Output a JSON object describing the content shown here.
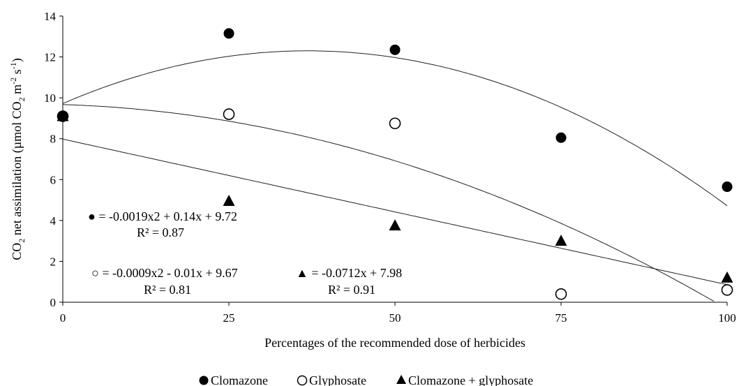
{
  "chart_data": {
    "type": "scatter",
    "title": "",
    "xlabel": "Percentages of the recommended dose of herbicides",
    "ylabel": {
      "t1": "CO",
      "t1_sub": "2",
      "t2": " net assimilation (µmol CO",
      "t2_sub": "2",
      "t3": " m",
      "t3_sup": "-2",
      "t4": " s",
      "t4_sup": "-1",
      "t5": ")"
    },
    "xlim": [
      0,
      100
    ],
    "ylim": [
      0,
      14
    ],
    "xticks": [
      0,
      25,
      50,
      75,
      100
    ],
    "yticks": [
      0,
      2,
      4,
      6,
      8,
      10,
      12,
      14
    ],
    "grid": false,
    "legend_position": "bottom",
    "series": [
      {
        "name": "Clomazone",
        "marker": "filled-circle",
        "x": [
          0,
          25,
          50,
          75,
          100
        ],
        "y": [
          9.1,
          13.15,
          12.35,
          8.05,
          5.65
        ],
        "fit": {
          "kind": "quadratic",
          "coeffs": [
            9.72,
            0.14,
            -0.0019
          ]
        },
        "equation": "● = -0.0019x2 + 0.14x + 9.72",
        "r2": "R² = 0.87"
      },
      {
        "name": "Glyphosate",
        "marker": "open-circle",
        "x": [
          0,
          25,
          50,
          75,
          100
        ],
        "y": [
          9.1,
          9.2,
          8.75,
          0.4,
          0.6
        ],
        "fit": {
          "kind": "quadratic",
          "coeffs": [
            9.67,
            -0.01,
            -0.0009
          ]
        },
        "equation": "○ = -0.0009x2 - 0.01x + 9.67",
        "r2": "R² = 0.81"
      },
      {
        "name": "Clomazone + glyphosate",
        "marker": "filled-triangle",
        "x": [
          0,
          25,
          50,
          75,
          100
        ],
        "y": [
          9.1,
          4.95,
          3.75,
          3.0,
          1.2
        ],
        "fit": {
          "kind": "linear",
          "coeffs": [
            7.98,
            -0.0712
          ]
        },
        "equation": "▲ = -0.0712x + 7.98",
        "r2": "R² = 0.91"
      }
    ]
  }
}
